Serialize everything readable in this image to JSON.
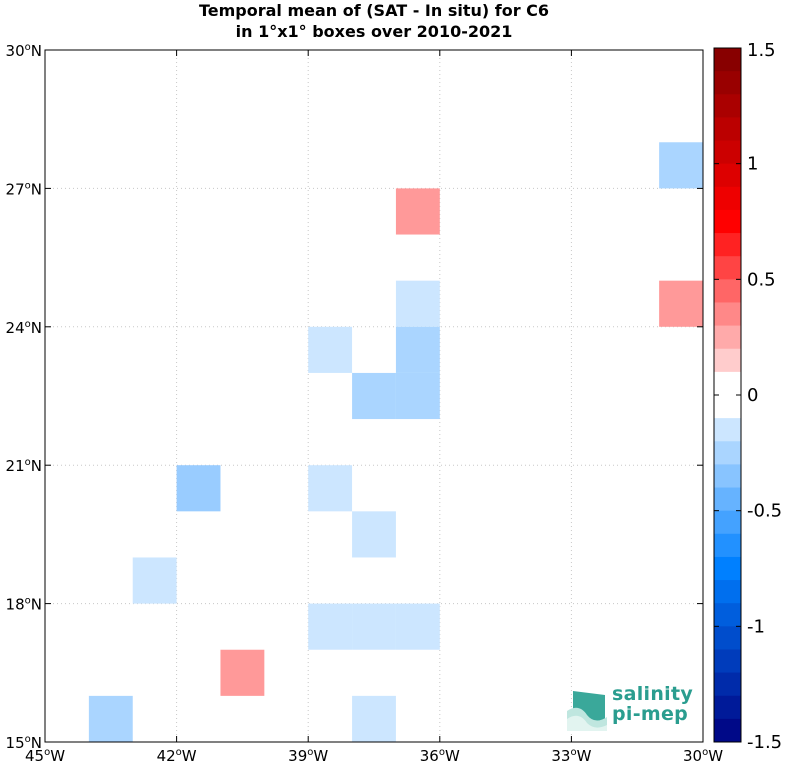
{
  "title": {
    "line1": "Temporal mean of (SAT - In situ) for C6",
    "line2": "in 1°x1° boxes over 2010-2021"
  },
  "chart_data": {
    "type": "heatmap",
    "title": "Temporal mean of (SAT - In situ) for C6 in 1°x1° boxes over 2010-2021",
    "xlim": [
      -45,
      -30
    ],
    "ylim": [
      15,
      30
    ],
    "x_ticks": [
      -45,
      -42,
      -39,
      -36,
      -33,
      -30
    ],
    "x_tick_labels": [
      "45°W",
      "42°W",
      "39°W",
      "36°W",
      "33°W",
      "30°W"
    ],
    "y_ticks": [
      15,
      18,
      21,
      24,
      27,
      30
    ],
    "y_tick_labels": [
      "15°N",
      "18°N",
      "21°N",
      "24°N",
      "27°N",
      "30°N"
    ],
    "grid": true,
    "cells": [
      {
        "lon": -31,
        "lat": 27,
        "value": -0.25
      },
      {
        "lon": -37,
        "lat": 26,
        "value": 0.3
      },
      {
        "lon": -37,
        "lat": 24,
        "value": -0.15
      },
      {
        "lon": -31,
        "lat": 24,
        "value": 0.3
      },
      {
        "lon": -39,
        "lat": 23,
        "value": -0.15
      },
      {
        "lon": -37,
        "lat": 23,
        "value": -0.25
      },
      {
        "lon": -38,
        "lat": 22,
        "value": -0.25
      },
      {
        "lon": -37,
        "lat": 22,
        "value": -0.25
      },
      {
        "lon": -42,
        "lat": 20,
        "value": -0.3
      },
      {
        "lon": -39,
        "lat": 20,
        "value": -0.15
      },
      {
        "lon": -38,
        "lat": 19,
        "value": -0.15
      },
      {
        "lon": -43,
        "lat": 18,
        "value": -0.15
      },
      {
        "lon": -39,
        "lat": 17,
        "value": -0.15
      },
      {
        "lon": -38,
        "lat": 17,
        "value": -0.15
      },
      {
        "lon": -37,
        "lat": 17,
        "value": -0.15
      },
      {
        "lon": -41,
        "lat": 16,
        "value": 0.3
      },
      {
        "lon": -44,
        "lat": 15,
        "value": -0.25
      },
      {
        "lon": -38,
        "lat": 15,
        "value": -0.15
      }
    ],
    "colorbar": {
      "min": -1.5,
      "max": 1.5,
      "levels": 30,
      "ticks": [
        1.5,
        1,
        0.5,
        0,
        -0.5,
        -1,
        -1.5
      ],
      "tick_labels": [
        "1.5",
        "1",
        "0.5",
        "0",
        "-0.5",
        "-1",
        "-1.5"
      ],
      "colormap": "blue-white-red",
      "neg_end": "#000080",
      "neg_mid": "#0080ff",
      "pos_mid": "#ff0000",
      "pos_end": "#800000"
    }
  },
  "logo": {
    "line1": "salinity",
    "line2": "pi-mep",
    "accent": "#2a9d8f"
  }
}
